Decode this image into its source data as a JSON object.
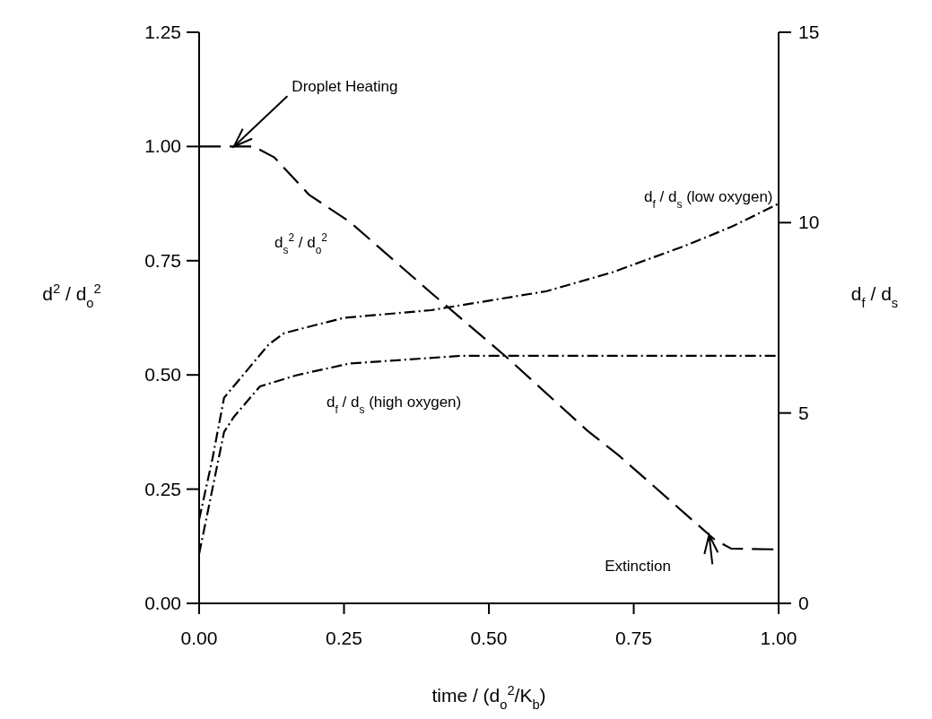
{
  "chart_data": {
    "type": "line",
    "xlabel": "time / (d$_{o}$$^{2}$/K$_{b}$)",
    "ylabel": "d$^{2}$ / d$_{o}$$^{2}$",
    "y2label": "d$_{f}$ / d$_{s}$",
    "xlim": [
      0,
      1
    ],
    "xticks": [
      {
        "value": 0,
        "label": "0.00"
      },
      {
        "value": 0.25,
        "label": "0.25"
      },
      {
        "value": 0.5,
        "label": "0.50"
      },
      {
        "value": 0.75,
        "label": "0.75"
      },
      {
        "value": 1,
        "label": "1.00"
      }
    ],
    "ylim": [
      0,
      1.25
    ],
    "yticks": [
      {
        "value": 0,
        "label": "0.00"
      },
      {
        "value": 0.25,
        "label": "0.25"
      },
      {
        "value": 0.5,
        "label": "0.50"
      },
      {
        "value": 0.75,
        "label": "0.75"
      },
      {
        "value": 1,
        "label": "1.00"
      },
      {
        "value": 1.25,
        "label": "1.25"
      }
    ],
    "y2lim": [
      0,
      15
    ],
    "y2ticks": [
      0,
      5,
      10,
      15
    ],
    "grid": false,
    "series": [
      {
        "name": "d$_{s}$$^{2}$ / d$_{o}$$^{2}$",
        "color": "#000000",
        "line_style": "dashed",
        "x": [
          0,
          0.05,
          0.094,
          0.13,
          0.19,
          0.26,
          0.4,
          0.534,
          0.67,
          0.724,
          0.89,
          0.918,
          1.0
        ],
        "values": [
          1.0,
          1.0,
          1.0,
          0.976,
          0.894,
          0.835,
          0.68,
          0.535,
          0.378,
          0.324,
          0.139,
          0.12,
          0.118
        ]
      },
      {
        "name": "d$_{f}$ / d$_{s}$ (low oxygen)",
        "color": "#000000",
        "line_style": "dotted",
        "axis": "y2",
        "x": [
          0,
          0.023,
          0.043,
          0.12,
          0.147,
          0.25,
          0.4,
          0.6,
          0.714,
          0.84,
          0.92,
          1.0
        ],
        "values": [
          2.2,
          3.8,
          5.4,
          6.8,
          7.1,
          7.5,
          7.7,
          8.2,
          8.7,
          9.4,
          9.9,
          10.5
        ]
      },
      {
        "name": "d$_{f}$ / d$_{s}$ (high oxygen)",
        "color": "#000000",
        "line_style": "dotted",
        "axis": "y2",
        "x": [
          0,
          0.043,
          0.06,
          0.105,
          0.17,
          0.26,
          0.45,
          1.0
        ],
        "values": [
          1.3,
          4.5,
          4.9,
          5.7,
          6.0,
          6.3,
          6.5,
          6.5
        ]
      }
    ],
    "annotations": [
      {
        "text": "Droplet Heating",
        "x": 0.06,
        "y": 1.0
      },
      {
        "text": "Extinction",
        "x": 0.88,
        "y": 0.15
      }
    ]
  }
}
